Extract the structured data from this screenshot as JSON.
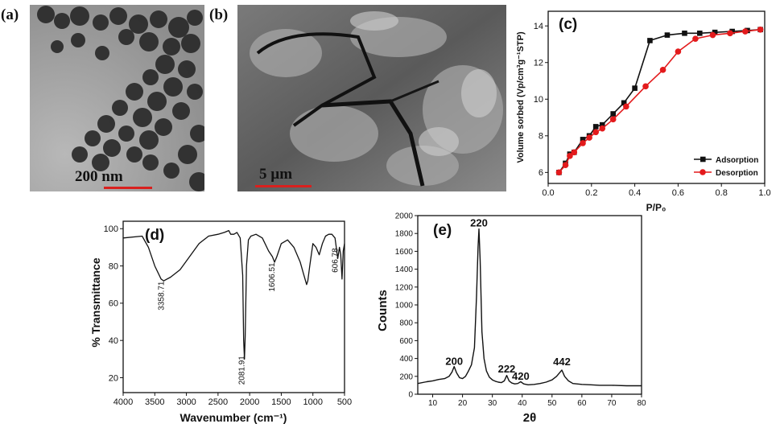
{
  "panels": {
    "a": {
      "label": "(a)",
      "scale_bar": "200 nm"
    },
    "b": {
      "label": "(b)",
      "scale_bar": "5 µm"
    }
  },
  "chart_data": [
    {
      "panel": "(c)",
      "type": "line",
      "xlabel": "P/P₀",
      "ylabel": "Volume sorbed (Vp/cm³g⁻¹STP)",
      "xlim": [
        0.0,
        1.0
      ],
      "ylim": [
        5.4,
        14.8
      ],
      "xticks": [
        0.0,
        0.2,
        0.4,
        0.6,
        0.8,
        1.0
      ],
      "yticks": [
        6,
        8,
        10,
        12,
        14
      ],
      "legend": "bottom-right",
      "series": [
        {
          "name": "Adsorption",
          "color": "#111111",
          "marker": "square",
          "x": [
            0.05,
            0.08,
            0.1,
            0.12,
            0.16,
            0.19,
            0.22,
            0.25,
            0.3,
            0.35,
            0.4,
            0.47,
            0.55,
            0.63,
            0.7,
            0.77,
            0.85,
            0.92,
            0.98
          ],
          "y": [
            6.0,
            6.5,
            7.0,
            7.1,
            7.8,
            8.0,
            8.5,
            8.6,
            9.2,
            9.8,
            10.6,
            13.2,
            13.5,
            13.6,
            13.6,
            13.65,
            13.7,
            13.75,
            13.8
          ]
        },
        {
          "name": "Desorption",
          "color": "#e31a1c",
          "marker": "circle",
          "x": [
            0.05,
            0.08,
            0.1,
            0.12,
            0.16,
            0.19,
            0.22,
            0.25,
            0.3,
            0.36,
            0.45,
            0.53,
            0.6,
            0.68,
            0.76,
            0.84,
            0.91,
            0.98
          ],
          "y": [
            6.0,
            6.4,
            6.9,
            7.1,
            7.6,
            7.9,
            8.2,
            8.4,
            8.9,
            9.6,
            10.7,
            11.6,
            12.6,
            13.3,
            13.5,
            13.6,
            13.7,
            13.8
          ]
        }
      ]
    },
    {
      "panel": "(d)",
      "type": "line",
      "xlabel": "Wavenumber (cm⁻¹)",
      "ylabel": "% Transmittance",
      "xlim": [
        4000,
        500
      ],
      "ylim": [
        12,
        104
      ],
      "xticks": [
        4000,
        3500,
        3000,
        2500,
        2000,
        1500,
        1000,
        500
      ],
      "yticks": [
        20,
        40,
        60,
        80,
        100
      ],
      "annotations": [
        {
          "text": "3358.71",
          "x": 3358.71,
          "y": 64
        },
        {
          "text": "2081.91",
          "x": 2081.91,
          "y": 24
        },
        {
          "text": "1606.51",
          "x": 1606.51,
          "y": 74
        },
        {
          "text": "606.78",
          "x": 606.78,
          "y": 83
        }
      ],
      "series": [
        {
          "color": "#111111",
          "x": [
            4000,
            3700,
            3600,
            3500,
            3400,
            3358.71,
            3250,
            3100,
            2950,
            2800,
            2650,
            2500,
            2400,
            2330,
            2300,
            2250,
            2200,
            2150,
            2110,
            2095,
            2081.91,
            2070,
            2050,
            2020,
            1980,
            1900,
            1800,
            1700,
            1640,
            1606.51,
            1570,
            1500,
            1400,
            1300,
            1200,
            1150,
            1100,
            1080,
            1050,
            1000,
            950,
            900,
            850,
            800,
            750,
            700,
            650,
            606.78,
            580,
            560,
            540,
            520,
            500
          ],
          "y": [
            95,
            96,
            90,
            80,
            73,
            72,
            74,
            78,
            85,
            92,
            96,
            97,
            98,
            99,
            97,
            97,
            98,
            95,
            75,
            40,
            30,
            42,
            80,
            94,
            96,
            97,
            95,
            88,
            85,
            82,
            85,
            92,
            94,
            90,
            82,
            76,
            70,
            72,
            80,
            92,
            90,
            86,
            92,
            96,
            97,
            97,
            95,
            84,
            90,
            86,
            73,
            88,
            92
          ]
        }
      ]
    },
    {
      "panel": "(e)",
      "type": "line",
      "xlabel": "2θ",
      "ylabel": "Counts",
      "xlim": [
        5,
        80
      ],
      "ylim": [
        0,
        2000
      ],
      "xticks": [
        10,
        20,
        30,
        40,
        50,
        60,
        70,
        80
      ],
      "yticks": [
        0,
        200,
        400,
        600,
        800,
        1000,
        1200,
        1400,
        1600,
        1800,
        2000
      ],
      "annotations": [
        {
          "text": "200",
          "x": 17.2,
          "y": 330
        },
        {
          "text": "220",
          "x": 25.5,
          "y": 1880
        },
        {
          "text": "222",
          "x": 34.8,
          "y": 245
        },
        {
          "text": "420",
          "x": 39.5,
          "y": 160
        },
        {
          "text": "442",
          "x": 53.3,
          "y": 325
        }
      ],
      "series": [
        {
          "color": "#111111",
          "x": [
            5,
            8,
            10,
            12,
            14,
            15.5,
            16.5,
            17.2,
            18,
            19,
            20,
            21,
            22,
            23,
            24,
            24.7,
            25.2,
            25.5,
            25.9,
            26.5,
            27.2,
            28,
            29,
            30,
            31,
            32,
            33,
            34,
            34.8,
            35.6,
            36.5,
            37.5,
            38.5,
            39.5,
            40.5,
            42,
            44,
            46,
            48,
            50,
            51.5,
            52.5,
            53.3,
            54.2,
            55.5,
            57,
            60,
            63,
            66,
            70,
            75,
            80
          ],
          "y": [
            120,
            140,
            150,
            165,
            175,
            200,
            250,
            310,
            240,
            185,
            175,
            200,
            260,
            330,
            520,
            1100,
            1650,
            1850,
            1500,
            700,
            400,
            260,
            190,
            160,
            145,
            135,
            130,
            150,
            210,
            150,
            125,
            115,
            120,
            140,
            115,
            105,
            110,
            120,
            135,
            160,
            200,
            240,
            270,
            200,
            150,
            120,
            110,
            105,
            100,
            100,
            95,
            95
          ]
        }
      ]
    }
  ]
}
